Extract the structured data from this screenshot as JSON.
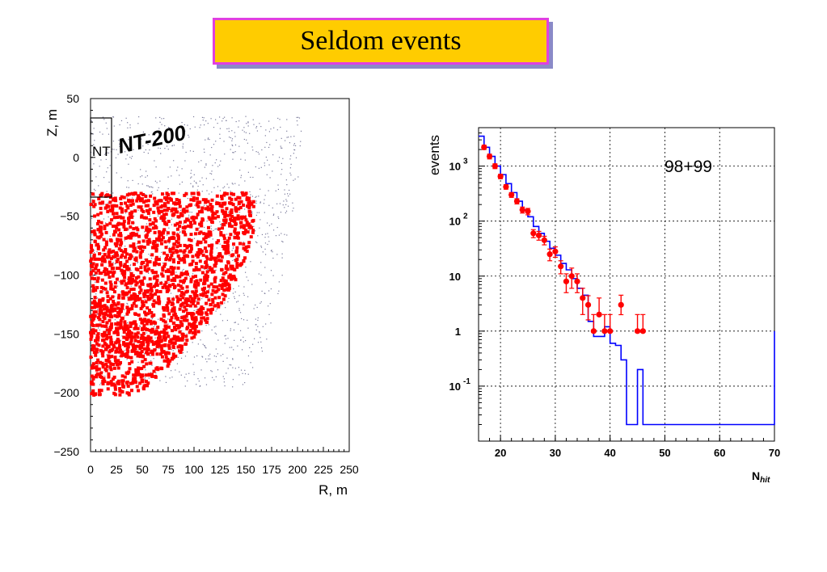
{
  "title": "Seldom events",
  "chart_data": [
    {
      "type": "scatter",
      "xlabel": "R, m",
      "ylabel": "Z, m",
      "xlim": [
        0,
        250
      ],
      "ylim": [
        -250,
        50
      ],
      "xticks": [
        "0",
        "25",
        "50",
        "75",
        "100",
        "125",
        "150",
        "175",
        "200",
        "225",
        "250"
      ],
      "yticks": [
        "50",
        "0",
        "−50",
        "−100",
        "−150",
        "−200",
        "−250"
      ],
      "annotations": {
        "detector_box_label": "NT",
        "detector_name": "NT-200"
      },
      "detector_box": {
        "r": [
          0,
          20
        ],
        "z": [
          -35,
          35
        ]
      },
      "series": [
        {
          "marker": "square",
          "color": "#ff0000"
        },
        {
          "marker": "dot",
          "color": "#7a7a9a"
        }
      ]
    },
    {
      "type": "histogram",
      "xlabel": "N",
      "xlabel_sub": "hit",
      "ylabel": "events",
      "yscale": "log",
      "xlim": [
        16,
        70
      ],
      "ylim": [
        0.01,
        5000
      ],
      "xticks": [
        "20",
        "30",
        "40",
        "50",
        "60",
        "70"
      ],
      "yticks": [
        {
          "base": "10",
          "exp": "3",
          "value": 1000
        },
        {
          "base": "10",
          "exp": "2",
          "value": 100
        },
        {
          "base": "10",
          "exp": "",
          "value": 10
        },
        {
          "base": "1",
          "exp": "",
          "value": 1
        },
        {
          "base": "10",
          "exp": "-1",
          "value": 0.1
        }
      ],
      "label": "98+99",
      "grid": true,
      "mc": {
        "color": "#0000ff",
        "edges": [
          16,
          17,
          18,
          19,
          20,
          21,
          22,
          23,
          24,
          25,
          26,
          27,
          28,
          29,
          30,
          31,
          32,
          33,
          34,
          35,
          36,
          37,
          38,
          39,
          40,
          41,
          42,
          43,
          44,
          45,
          46,
          70
        ],
        "values": [
          3500,
          2200,
          1500,
          1000,
          700,
          480,
          330,
          230,
          160,
          120,
          80,
          60,
          43,
          32,
          24,
          17,
          13,
          9,
          6,
          4.5,
          1.5,
          0.8,
          0.8,
          1.2,
          0.6,
          0.55,
          0.3,
          0.02,
          0.02,
          0.2,
          0.02,
          1
        ]
      },
      "data": {
        "color": "#ff0000",
        "x": [
          17,
          18,
          19,
          20,
          21,
          22,
          23,
          24,
          25,
          26,
          27,
          28,
          29,
          30,
          31,
          32,
          33,
          34,
          35,
          36,
          37,
          38,
          39,
          40,
          42,
          45,
          46
        ],
        "y": [
          2200,
          1500,
          1000,
          650,
          420,
          300,
          230,
          160,
          150,
          60,
          55,
          45,
          25,
          28,
          15,
          8,
          10,
          8,
          4,
          3,
          1,
          2,
          1,
          1,
          3,
          1,
          1
        ],
        "err_low": [
          2000,
          1350,
          900,
          590,
          380,
          270,
          205,
          140,
          130,
          50,
          45,
          37,
          19,
          22,
          11,
          5,
          6,
          5,
          2,
          1.6,
          0.99,
          1.99,
          0.99,
          0.99,
          1.99,
          0.99,
          0.99
        ],
        "err_high": [
          2400,
          1650,
          1100,
          710,
          460,
          330,
          255,
          180,
          170,
          70,
          65,
          53,
          31,
          34,
          19,
          11,
          14,
          11,
          6,
          4.4,
          2,
          4,
          2,
          2,
          4.5,
          2,
          2
        ]
      }
    }
  ]
}
